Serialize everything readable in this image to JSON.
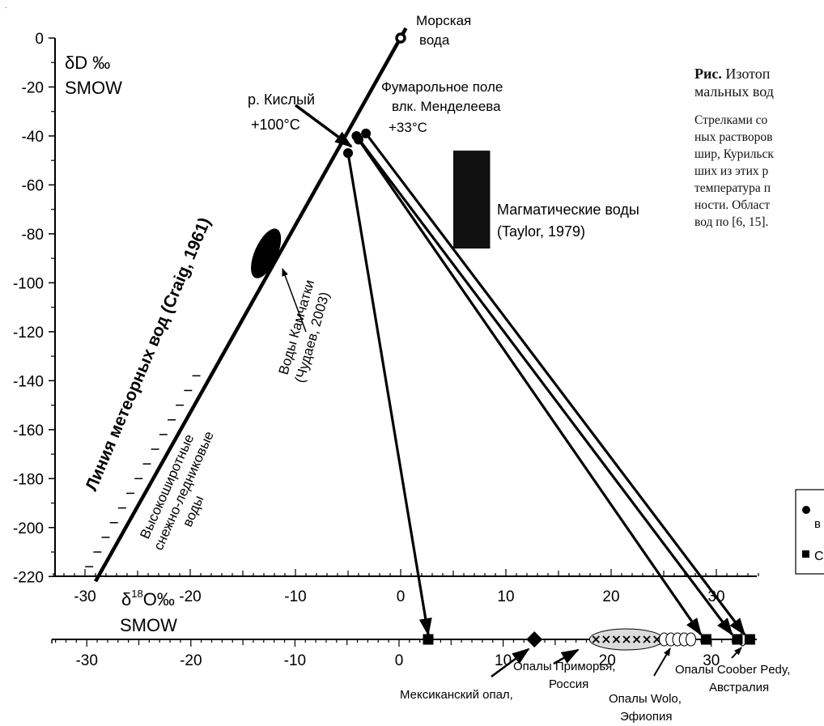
{
  "chart_data": {
    "type": "scatter",
    "title": "",
    "y_axis": {
      "label_line1": "δD ‰",
      "label_line2": "SMOW",
      "range": [
        -220,
        0
      ],
      "ticks": [
        0,
        -20,
        -40,
        -60,
        -80,
        -100,
        -120,
        -140,
        -160,
        -180,
        -200,
        -220
      ],
      "tick_labels": [
        "0",
        "-20",
        "-40",
        "-60",
        "-80",
        "-100",
        "-120",
        "-140",
        "-160",
        "-180",
        "-200",
        "-220"
      ]
    },
    "x_axis_upper": {
      "label_prefix": "δ",
      "label_sup": "18",
      "label_suffix": "O‰",
      "label_line2": "SMOW",
      "range": [
        -35,
        35
      ],
      "ticks": [
        -30,
        -20,
        -10,
        0,
        10,
        20,
        30
      ],
      "tick_labels": [
        "-30",
        "-20",
        "-10",
        "0",
        "10",
        "20",
        "30"
      ]
    },
    "x_axis_lower": {
      "range": [
        -35,
        35
      ],
      "ticks": [
        -30,
        -20,
        -10,
        0,
        10,
        20,
        30
      ],
      "tick_labels": [
        "-30",
        "-20",
        "-10",
        "0",
        "10",
        "20",
        "30"
      ]
    },
    "meteoric_line": {
      "label": "Линия метеорных вод (Craig, 1961)",
      "x1": -29,
      "y1": -222,
      "x2": 0.5,
      "y2": 4
    },
    "seawater": {
      "x": 0,
      "y": 0,
      "label_line1": "Морская",
      "label_line2": "вода"
    },
    "kamchatka_waters": {
      "x": -12.8,
      "y": -88,
      "label_line1": "Воды Камчатки",
      "label_line2": "(Чудаев, 2003)"
    },
    "snow_glacier_waters": {
      "label_line1": "Высокоширотные",
      "label_line2": "снежно-ледниковые",
      "label_line3": "воды"
    },
    "magmatic_waters": {
      "x_range": [
        5,
        8.5
      ],
      "y_range": [
        -86,
        -46
      ],
      "label_line1": "Магматические воды",
      "label_line2": "(Taylor, 1979)"
    },
    "kisly_river": {
      "label_line1": "р. Кислый",
      "label_line2": "+100°C",
      "point": {
        "x": -5,
        "y": -47
      }
    },
    "fumarole_field": {
      "label_line1": "Фумарольное поле",
      "label_line2": "влк. Менделеева",
      "label_line3": "+33°C",
      "points": [
        {
          "x": -4.2,
          "y": -40
        },
        {
          "x": -4,
          "y": -41.5
        },
        {
          "x": -3.3,
          "y": -39
        }
      ]
    },
    "opal_points": [
      {
        "name": "Мексиканский опал,",
        "x": 2.8,
        "marker": "square"
      },
      {
        "name": "Опалы Приморья, Россия",
        "x": 13,
        "marker": "diamond"
      },
      {
        "name": "Опалы Wolo, Эфиопия",
        "x": 29.5,
        "marker": "square"
      },
      {
        "name": "Опалы Coober Pedy, Австралия",
        "x": 32.5,
        "marker": "square"
      },
      {
        "name": "Опалы Coober Pedy, Австралия",
        "x": 33.7,
        "marker": "square"
      }
    ],
    "opal_groups": [
      {
        "name": "Опалы Приморья, Россия",
        "label_line1": "Опалы Приморья,",
        "label_line2": "Россия",
        "x_range": [
          18.3,
          25.4
        ],
        "marker": "cross"
      },
      {
        "name": "Опалы Wolo, Эфиопия",
        "label_line1": "Опалы Wolo,",
        "label_line2": "Эфиопия",
        "x_range": [
          25,
          28.5
        ],
        "marker": "open-circle"
      },
      {
        "name": "Опалы Coober Pedy, Австралия",
        "label_line1": "Опалы Coober Pedy,",
        "label_line2": "Австралия",
        "x_range": [
          32.5,
          33.5
        ],
        "marker": "open-circle"
      }
    ],
    "arrows": [
      {
        "from": {
          "x": -5,
          "y": -47
        },
        "to_lower_x": 2.8
      },
      {
        "from": {
          "x": -4,
          "y": -41.5
        },
        "to_lower_x": 29
      },
      {
        "from": {
          "x": -4.2,
          "y": -40
        },
        "to_lower_x": 32
      },
      {
        "from": {
          "x": -3.3,
          "y": -39
        },
        "to_lower_x": 33.2
      }
    ],
    "legend": {
      "placement": "right (cut off)",
      "row1": "в",
      "row2": "С"
    }
  },
  "caption": {
    "title_bold": "Рис.",
    "title_rest": "Изотоп",
    "title_line2": "мальных вод",
    "body": [
      "Стрелками со",
      "ных растворов",
      "шир, Курильск",
      "ших из этих р",
      "температура п",
      "ности. Област",
      "вод по [6, 15]."
    ]
  },
  "colors": {
    "ink": "#000000",
    "group_fill": "#dcdcdc"
  }
}
